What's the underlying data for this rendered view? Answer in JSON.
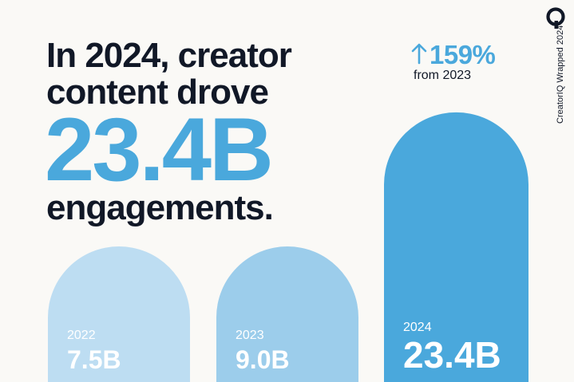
{
  "headline": {
    "line1": "In 2024, creator",
    "line2": "content drove",
    "big_number": "23.4B",
    "line3": "engagements."
  },
  "change": {
    "value": "159%",
    "caption": "from 2023"
  },
  "brand": {
    "vertical_text": "CreatorIQ Wrapped 2024"
  },
  "colors": {
    "accent": "#4AA8DC",
    "bar_2022": "#BDDDF2",
    "bar_2023": "#9CCDEB",
    "bar_2024": "#4AA8DC",
    "text": "#111827",
    "background": "#FAF9F6"
  },
  "chart_data": {
    "type": "bar",
    "title": "",
    "xlabel": "",
    "ylabel": "",
    "categories": [
      "2022",
      "2023",
      "2024"
    ],
    "values": [
      7.5,
      9.0,
      23.4
    ],
    "value_labels": [
      "7.5B",
      "9.0B",
      "23.4B"
    ],
    "unit": "B engagements",
    "ylim": [
      0,
      25
    ]
  }
}
